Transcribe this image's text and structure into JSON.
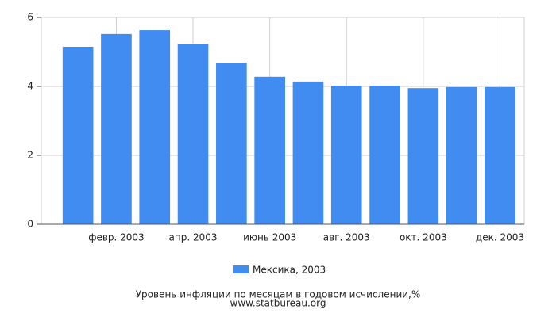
{
  "chart_data": {
    "type": "bar",
    "categories": [
      null,
      "февр. 2003",
      null,
      "апр. 2003",
      null,
      "июнь 2003",
      null,
      "авг. 2003",
      null,
      "окт. 2003",
      null,
      "дек. 2003"
    ],
    "series": [
      {
        "name": "Мексика, 2003",
        "color": "#418cf0",
        "values": [
          5.15,
          5.52,
          5.63,
          5.24,
          4.69,
          4.28,
          4.14,
          4.02,
          4.02,
          3.95,
          3.98,
          3.98
        ]
      }
    ],
    "ylim": [
      0,
      6
    ],
    "yticks": [
      0,
      2,
      4,
      6
    ],
    "grid": true,
    "footer": "Уровень инфляции по месяцам в годовом исчислении,%",
    "source": "www.statbureau.org"
  }
}
